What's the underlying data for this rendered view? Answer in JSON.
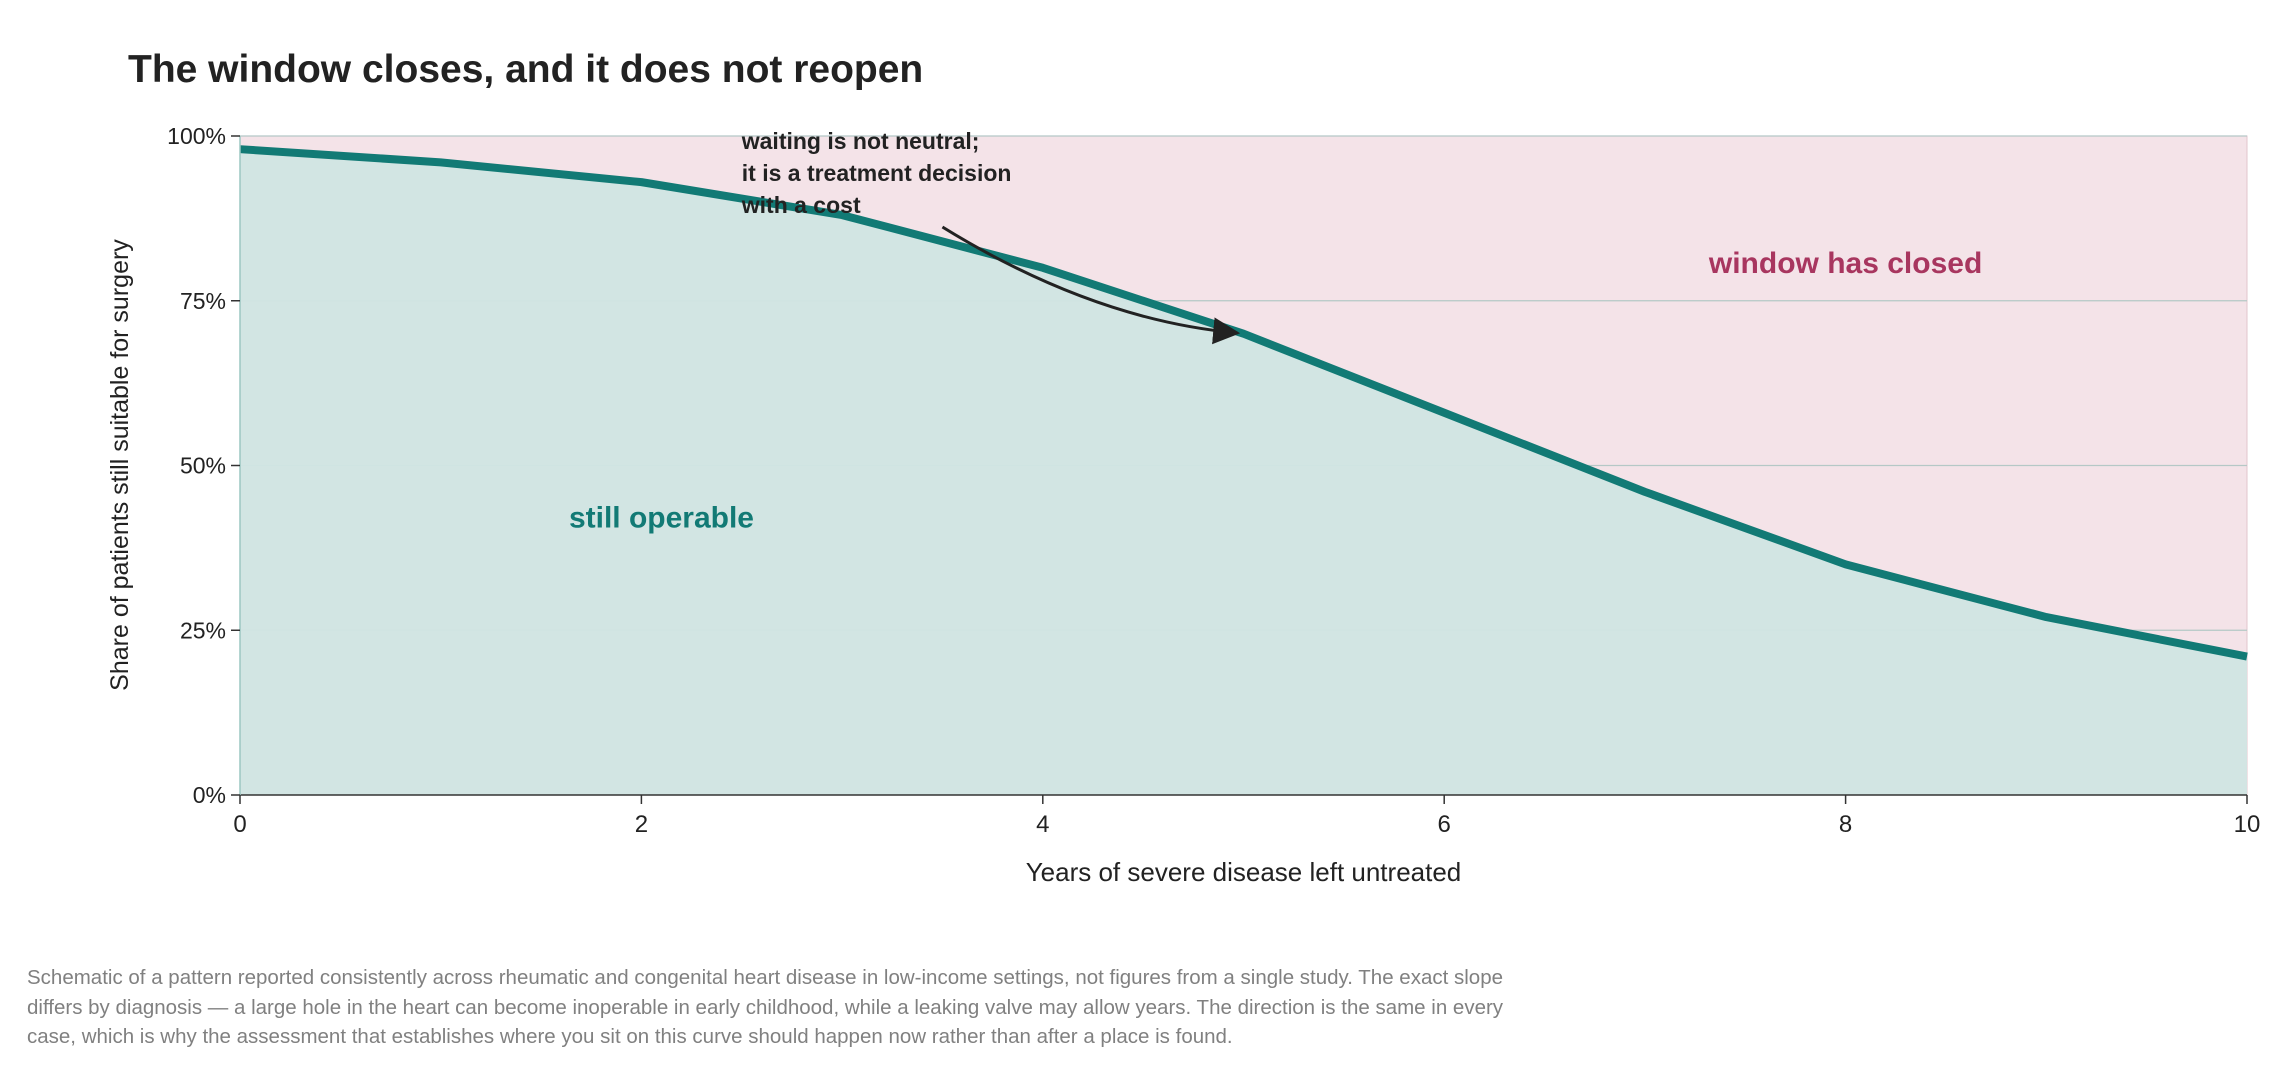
{
  "chart_data": {
    "type": "area",
    "title": "The window closes, and it does not reopen",
    "xlabel": "Years of severe disease left untreated",
    "ylabel": "Share of patients still suitable for surgery",
    "xlim": [
      0,
      10
    ],
    "ylim": [
      0,
      100
    ],
    "x_ticks": [
      0,
      2,
      4,
      6,
      8,
      10
    ],
    "x_tick_labels": [
      "0",
      "2",
      "4",
      "6",
      "8",
      "10"
    ],
    "y_ticks": [
      0,
      25,
      50,
      75,
      100
    ],
    "y_tick_labels": [
      "0%",
      "25%",
      "50%",
      "75%",
      "100%"
    ],
    "grid": true,
    "series": [
      {
        "x": [
          0,
          1,
          2,
          3,
          4,
          5,
          6,
          7,
          8,
          9,
          10
        ],
        "values": [
          98,
          96,
          93,
          88,
          80,
          70,
          58,
          46,
          35,
          27,
          21
        ]
      }
    ],
    "region_labels": {
      "below": "still operable",
      "above": "window has closed"
    },
    "annotation": {
      "lines": [
        "waiting is not neutral;",
        "it is a treatment decision",
        "with a cost"
      ]
    },
    "colors": {
      "line": "#127a75",
      "area_below": "#d0e5e3",
      "area_above": "#f4e3e8",
      "label_below": "#127a75",
      "label_above": "#a8365f",
      "grid": "#b5c8c6",
      "text": "#222222",
      "caption": "#808080"
    }
  },
  "caption": [
    "Schematic of a pattern reported consistently across rheumatic and congenital heart disease in low-income settings, not figures from a single study. The exact slope",
    "differs by diagnosis — a large hole in the heart can become inoperable in early childhood, while a leaking valve may allow years. The direction is the same in every",
    "case, which is why the assessment that establishes where you sit on this curve should happen now rather than after a place is found."
  ]
}
